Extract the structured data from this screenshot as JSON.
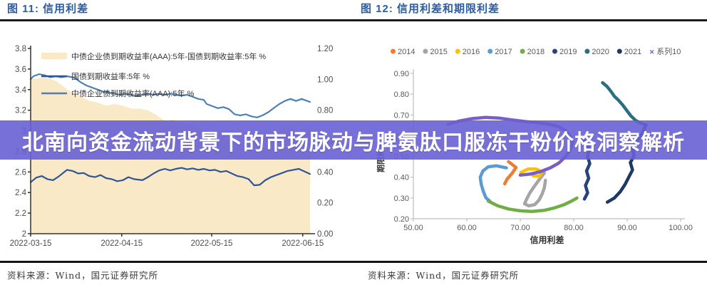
{
  "overlay": {
    "text": "北南向资金流动背景下的市场脉动与脾氨肽口服冻干粉价格洞察解析",
    "background": "#6860D4",
    "text_color": "#ffffff"
  },
  "source": {
    "text": "资料来源：Wind，国元证券研究所"
  },
  "figure11": {
    "title": "图 11: 信用利差"
  },
  "figure12": {
    "title": "图 12: 信用利差和期限利差"
  },
  "chart_data": [
    {
      "id": "fig11",
      "type": "line",
      "title": "图 11: 信用利差",
      "x_tick_labels": [
        "2022-03-15",
        "2022-04-15",
        "2022-05-15",
        "2022-06-15"
      ],
      "x_tick_pos": [
        0,
        32.6,
        64.8,
        97.4
      ],
      "y_left": {
        "min": 2.0,
        "max": 3.8,
        "ticks": [
          "3.8",
          "3.6",
          "3.4",
          "3.2",
          "3",
          "2.8",
          "2.6",
          "2.4",
          "2.2",
          "2"
        ]
      },
      "y_right": {
        "min": 0.0,
        "max": 1.2,
        "ticks": [
          "1.20",
          "1.00",
          "0.80",
          "0.60",
          "0.40",
          "0.20",
          "0.00"
        ]
      },
      "legend_position": "inside-top-left",
      "grid": false,
      "series": [
        {
          "name": "中债企业债到期收益率(AAA):5年-国债到期收益率:5年 %",
          "type": "area",
          "axis": "right",
          "color": "#FAE9C6",
          "points": [
            [
              0,
              1.0
            ],
            [
              3,
              1.01
            ],
            [
              6,
              1.01
            ],
            [
              9,
              0.99
            ],
            [
              12,
              0.95
            ],
            [
              15,
              0.91
            ],
            [
              18,
              0.89
            ],
            [
              21,
              0.86
            ],
            [
              24,
              0.85
            ],
            [
              27,
              0.83
            ],
            [
              30,
              0.84
            ],
            [
              33,
              0.83
            ],
            [
              36,
              0.81
            ],
            [
              39,
              0.81
            ],
            [
              42,
              0.8
            ],
            [
              45,
              0.77
            ],
            [
              48,
              0.73
            ],
            [
              51,
              0.74
            ],
            [
              54,
              0.71
            ],
            [
              57,
              0.71
            ],
            [
              60,
              0.69
            ],
            [
              63,
              0.66
            ],
            [
              66,
              0.62
            ],
            [
              69,
              0.63
            ],
            [
              72,
              0.6
            ],
            [
              75,
              0.59
            ],
            [
              78,
              0.62
            ],
            [
              81,
              0.66
            ],
            [
              84,
              0.65
            ],
            [
              87,
              0.66
            ],
            [
              90,
              0.68
            ],
            [
              93,
              0.69
            ],
            [
              96,
              0.67
            ],
            [
              99,
              0.69
            ],
            [
              100,
              0.7
            ]
          ]
        },
        {
          "name": "国债到期收益率:5年 %",
          "type": "line",
          "axis": "left",
          "color": "#2F5597",
          "points": [
            [
              0,
              2.5
            ],
            [
              2,
              2.545
            ],
            [
              4,
              2.56
            ],
            [
              6,
              2.53
            ],
            [
              8,
              2.52
            ],
            [
              10,
              2.555
            ],
            [
              13,
              2.62
            ],
            [
              15,
              2.61
            ],
            [
              17,
              2.585
            ],
            [
              19,
              2.59
            ],
            [
              21,
              2.56
            ],
            [
              23,
              2.55
            ],
            [
              25,
              2.57
            ],
            [
              27,
              2.54
            ],
            [
              29,
              2.53
            ],
            [
              31,
              2.51
            ],
            [
              33,
              2.52
            ],
            [
              35,
              2.55
            ],
            [
              37,
              2.53
            ],
            [
              40,
              2.52
            ],
            [
              42,
              2.55
            ],
            [
              44,
              2.585
            ],
            [
              46,
              2.615
            ],
            [
              48,
              2.63
            ],
            [
              50,
              2.615
            ],
            [
              52,
              2.63
            ],
            [
              54,
              2.64
            ],
            [
              56,
              2.625
            ],
            [
              58,
              2.635
            ],
            [
              60,
              2.62
            ],
            [
              62,
              2.63
            ],
            [
              64,
              2.615
            ],
            [
              66,
              2.62
            ],
            [
              68,
              2.6
            ],
            [
              70,
              2.61
            ],
            [
              72,
              2.585
            ],
            [
              74,
              2.56
            ],
            [
              76,
              2.55
            ],
            [
              78,
              2.53
            ],
            [
              80,
              2.47
            ],
            [
              82,
              2.475
            ],
            [
              84,
              2.52
            ],
            [
              86,
              2.55
            ],
            [
              88,
              2.57
            ],
            [
              90,
              2.59
            ],
            [
              92,
              2.61
            ],
            [
              94,
              2.62
            ],
            [
              96,
              2.63
            ],
            [
              98,
              2.605
            ],
            [
              100,
              2.58
            ]
          ]
        },
        {
          "name": "中债企业债到期收益率(AAA):5年 %",
          "type": "line",
          "axis": "left",
          "color": "#4E80B0",
          "points": [
            [
              0,
              3.5
            ],
            [
              1,
              3.53
            ],
            [
              3,
              3.55
            ],
            [
              5,
              3.54
            ],
            [
              7,
              3.52
            ],
            [
              9,
              3.53
            ],
            [
              11,
              3.52
            ],
            [
              13,
              3.53
            ],
            [
              15,
              3.52
            ],
            [
              16,
              3.51
            ],
            [
              18,
              3.47
            ],
            [
              20,
              3.44
            ],
            [
              22,
              3.42
            ],
            [
              24,
              3.4
            ],
            [
              26,
              3.38
            ],
            [
              28,
              3.37
            ],
            [
              30,
              3.36
            ],
            [
              32,
              3.35
            ],
            [
              34,
              3.36
            ],
            [
              36,
              3.35
            ],
            [
              38,
              3.34
            ],
            [
              40,
              3.35
            ],
            [
              42,
              3.36
            ],
            [
              44,
              3.35
            ],
            [
              46,
              3.36
            ],
            [
              48,
              3.35
            ],
            [
              50,
              3.36
            ],
            [
              52,
              3.35
            ],
            [
              54,
              3.34
            ],
            [
              56,
              3.35
            ],
            [
              58,
              3.33
            ],
            [
              60,
              3.31
            ],
            [
              62,
              3.3
            ],
            [
              63,
              3.26
            ],
            [
              65,
              3.24
            ],
            [
              67,
              3.22
            ],
            [
              69,
              3.23
            ],
            [
              71,
              3.21
            ],
            [
              73,
              3.16
            ],
            [
              75,
              3.15
            ],
            [
              77,
              3.16
            ],
            [
              79,
              3.14
            ],
            [
              81,
              3.13
            ],
            [
              83,
              3.15
            ],
            [
              85,
              3.18
            ],
            [
              87,
              3.22
            ],
            [
              89,
              3.26
            ],
            [
              91,
              3.29
            ],
            [
              93,
              3.31
            ],
            [
              95,
              3.29
            ],
            [
              97,
              3.31
            ],
            [
              99,
              3.29
            ],
            [
              100,
              3.28
            ]
          ]
        }
      ]
    },
    {
      "id": "fig12",
      "type": "scatter-path",
      "title": "图 12: 信用利差和期限利差",
      "xlabel": "信用利差",
      "ylabel": "期限利差",
      "xlim": [
        50,
        100
      ],
      "ylim": [
        0.2,
        0.9
      ],
      "x_ticks": [
        "50.00",
        "60.00",
        "70.00",
        "80.00",
        "90.00",
        "100.00"
      ],
      "y_ticks": [
        "0.90",
        "0.80",
        "0.70",
        "0.60",
        "0.50",
        "0.40",
        "0.30",
        "0.20"
      ],
      "legend_position": "top",
      "grid": false,
      "series": [
        {
          "name": "2014",
          "color": "#ED7D31",
          "marker": "dot",
          "points": [
            [
              67.8,
              0.475
            ],
            [
              69.2,
              0.447
            ],
            [
              68.5,
              0.42
            ],
            [
              67.5,
              0.39
            ],
            [
              67.1,
              0.368
            ]
          ]
        },
        {
          "name": "2015",
          "color": "#A5A5A5",
          "marker": "dot",
          "points": [
            [
              74.5,
              0.42
            ],
            [
              73.6,
              0.39
            ],
            [
              72.6,
              0.355
            ],
            [
              71.8,
              0.325
            ],
            [
              71.2,
              0.295
            ],
            [
              70.8,
              0.272
            ],
            [
              71.6,
              0.262
            ],
            [
              72.7,
              0.268
            ],
            [
              73.5,
              0.29
            ],
            [
              74.1,
              0.32
            ],
            [
              74.5,
              0.35
            ],
            [
              74.7,
              0.385
            ]
          ]
        },
        {
          "name": "2016",
          "color": "#FFC000",
          "marker": "dot",
          "points": [
            [
              70.1,
              0.423
            ],
            [
              71.5,
              0.44
            ],
            [
              72.9,
              0.44
            ],
            [
              74.0,
              0.427
            ],
            [
              73.6,
              0.405
            ],
            [
              72.4,
              0.407
            ]
          ]
        },
        {
          "name": "2017",
          "color": "#5B9BD5",
          "marker": "dot",
          "points": [
            [
              67.4,
              0.445
            ],
            [
              65.5,
              0.455
            ],
            [
              64.0,
              0.45
            ],
            [
              63.0,
              0.43
            ],
            [
              62.5,
              0.4
            ],
            [
              62.7,
              0.365
            ],
            [
              63.1,
              0.33
            ],
            [
              63.6,
              0.3
            ],
            [
              64.3,
              0.285
            ]
          ]
        },
        {
          "name": "2018",
          "color": "#70AD47",
          "marker": "dot",
          "points": [
            [
              64.0,
              0.285
            ],
            [
              65.8,
              0.262
            ],
            [
              67.8,
              0.247
            ],
            [
              70.0,
              0.238
            ],
            [
              72.2,
              0.235
            ],
            [
              74.4,
              0.24
            ],
            [
              76.4,
              0.252
            ],
            [
              78.2,
              0.268
            ],
            [
              79.6,
              0.285
            ],
            [
              80.6,
              0.3
            ]
          ]
        },
        {
          "name": "2019",
          "color": "#264478",
          "marker": "dot",
          "points": [
            [
              82.0,
              0.295
            ],
            [
              82.6,
              0.325
            ],
            [
              82.2,
              0.36
            ],
            [
              82.8,
              0.395
            ],
            [
              82.4,
              0.43
            ],
            [
              83.0,
              0.465
            ],
            [
              82.6,
              0.5
            ],
            [
              82.9,
              0.535
            ],
            [
              82.3,
              0.565
            ],
            [
              81.4,
              0.59
            ]
          ]
        },
        {
          "name": "2020",
          "color": "#2C6E80",
          "marker": "dot",
          "points": [
            [
              85.4,
              0.855
            ],
            [
              86.2,
              0.838
            ],
            [
              87.0,
              0.812
            ],
            [
              87.6,
              0.79
            ],
            [
              88.3,
              0.773
            ],
            [
              89.1,
              0.75
            ],
            [
              89.9,
              0.722
            ],
            [
              90.7,
              0.695
            ],
            [
              91.6,
              0.673
            ],
            [
              92.6,
              0.66
            ],
            [
              93.5,
              0.652
            ]
          ]
        },
        {
          "name": "2021",
          "color": "#1F3864",
          "marker": "dot",
          "points": [
            [
              93.5,
              0.652
            ],
            [
              92.8,
              0.61
            ],
            [
              91.8,
              0.575
            ],
            [
              90.9,
              0.545
            ],
            [
              91.3,
              0.505
            ],
            [
              90.6,
              0.47
            ],
            [
              91.0,
              0.435
            ],
            [
              90.3,
              0.4
            ],
            [
              89.6,
              0.365
            ],
            [
              88.7,
              0.33
            ],
            [
              87.6,
              0.3
            ],
            [
              86.3,
              0.28
            ]
          ]
        },
        {
          "name": "系列10",
          "color": "#7A5EC8",
          "marker": "x",
          "points": [
            [
              56.5,
              0.655
            ],
            [
              58.5,
              0.67
            ],
            [
              61.0,
              0.682
            ],
            [
              63.5,
              0.688
            ],
            [
              66.0,
              0.685
            ],
            [
              68.5,
              0.676
            ],
            [
              71.0,
              0.668
            ],
            [
              73.5,
              0.662
            ],
            [
              75.5,
              0.655
            ],
            [
              77.3,
              0.643
            ],
            [
              78.6,
              0.622
            ],
            [
              79.4,
              0.595
            ],
            [
              79.8,
              0.565
            ],
            [
              79.3,
              0.53
            ],
            [
              78.4,
              0.497
            ],
            [
              77.2,
              0.468
            ],
            [
              75.6,
              0.445
            ],
            [
              73.8,
              0.427
            ],
            [
              71.9,
              0.415
            ],
            [
              70.0,
              0.41
            ]
          ]
        }
      ]
    }
  ]
}
